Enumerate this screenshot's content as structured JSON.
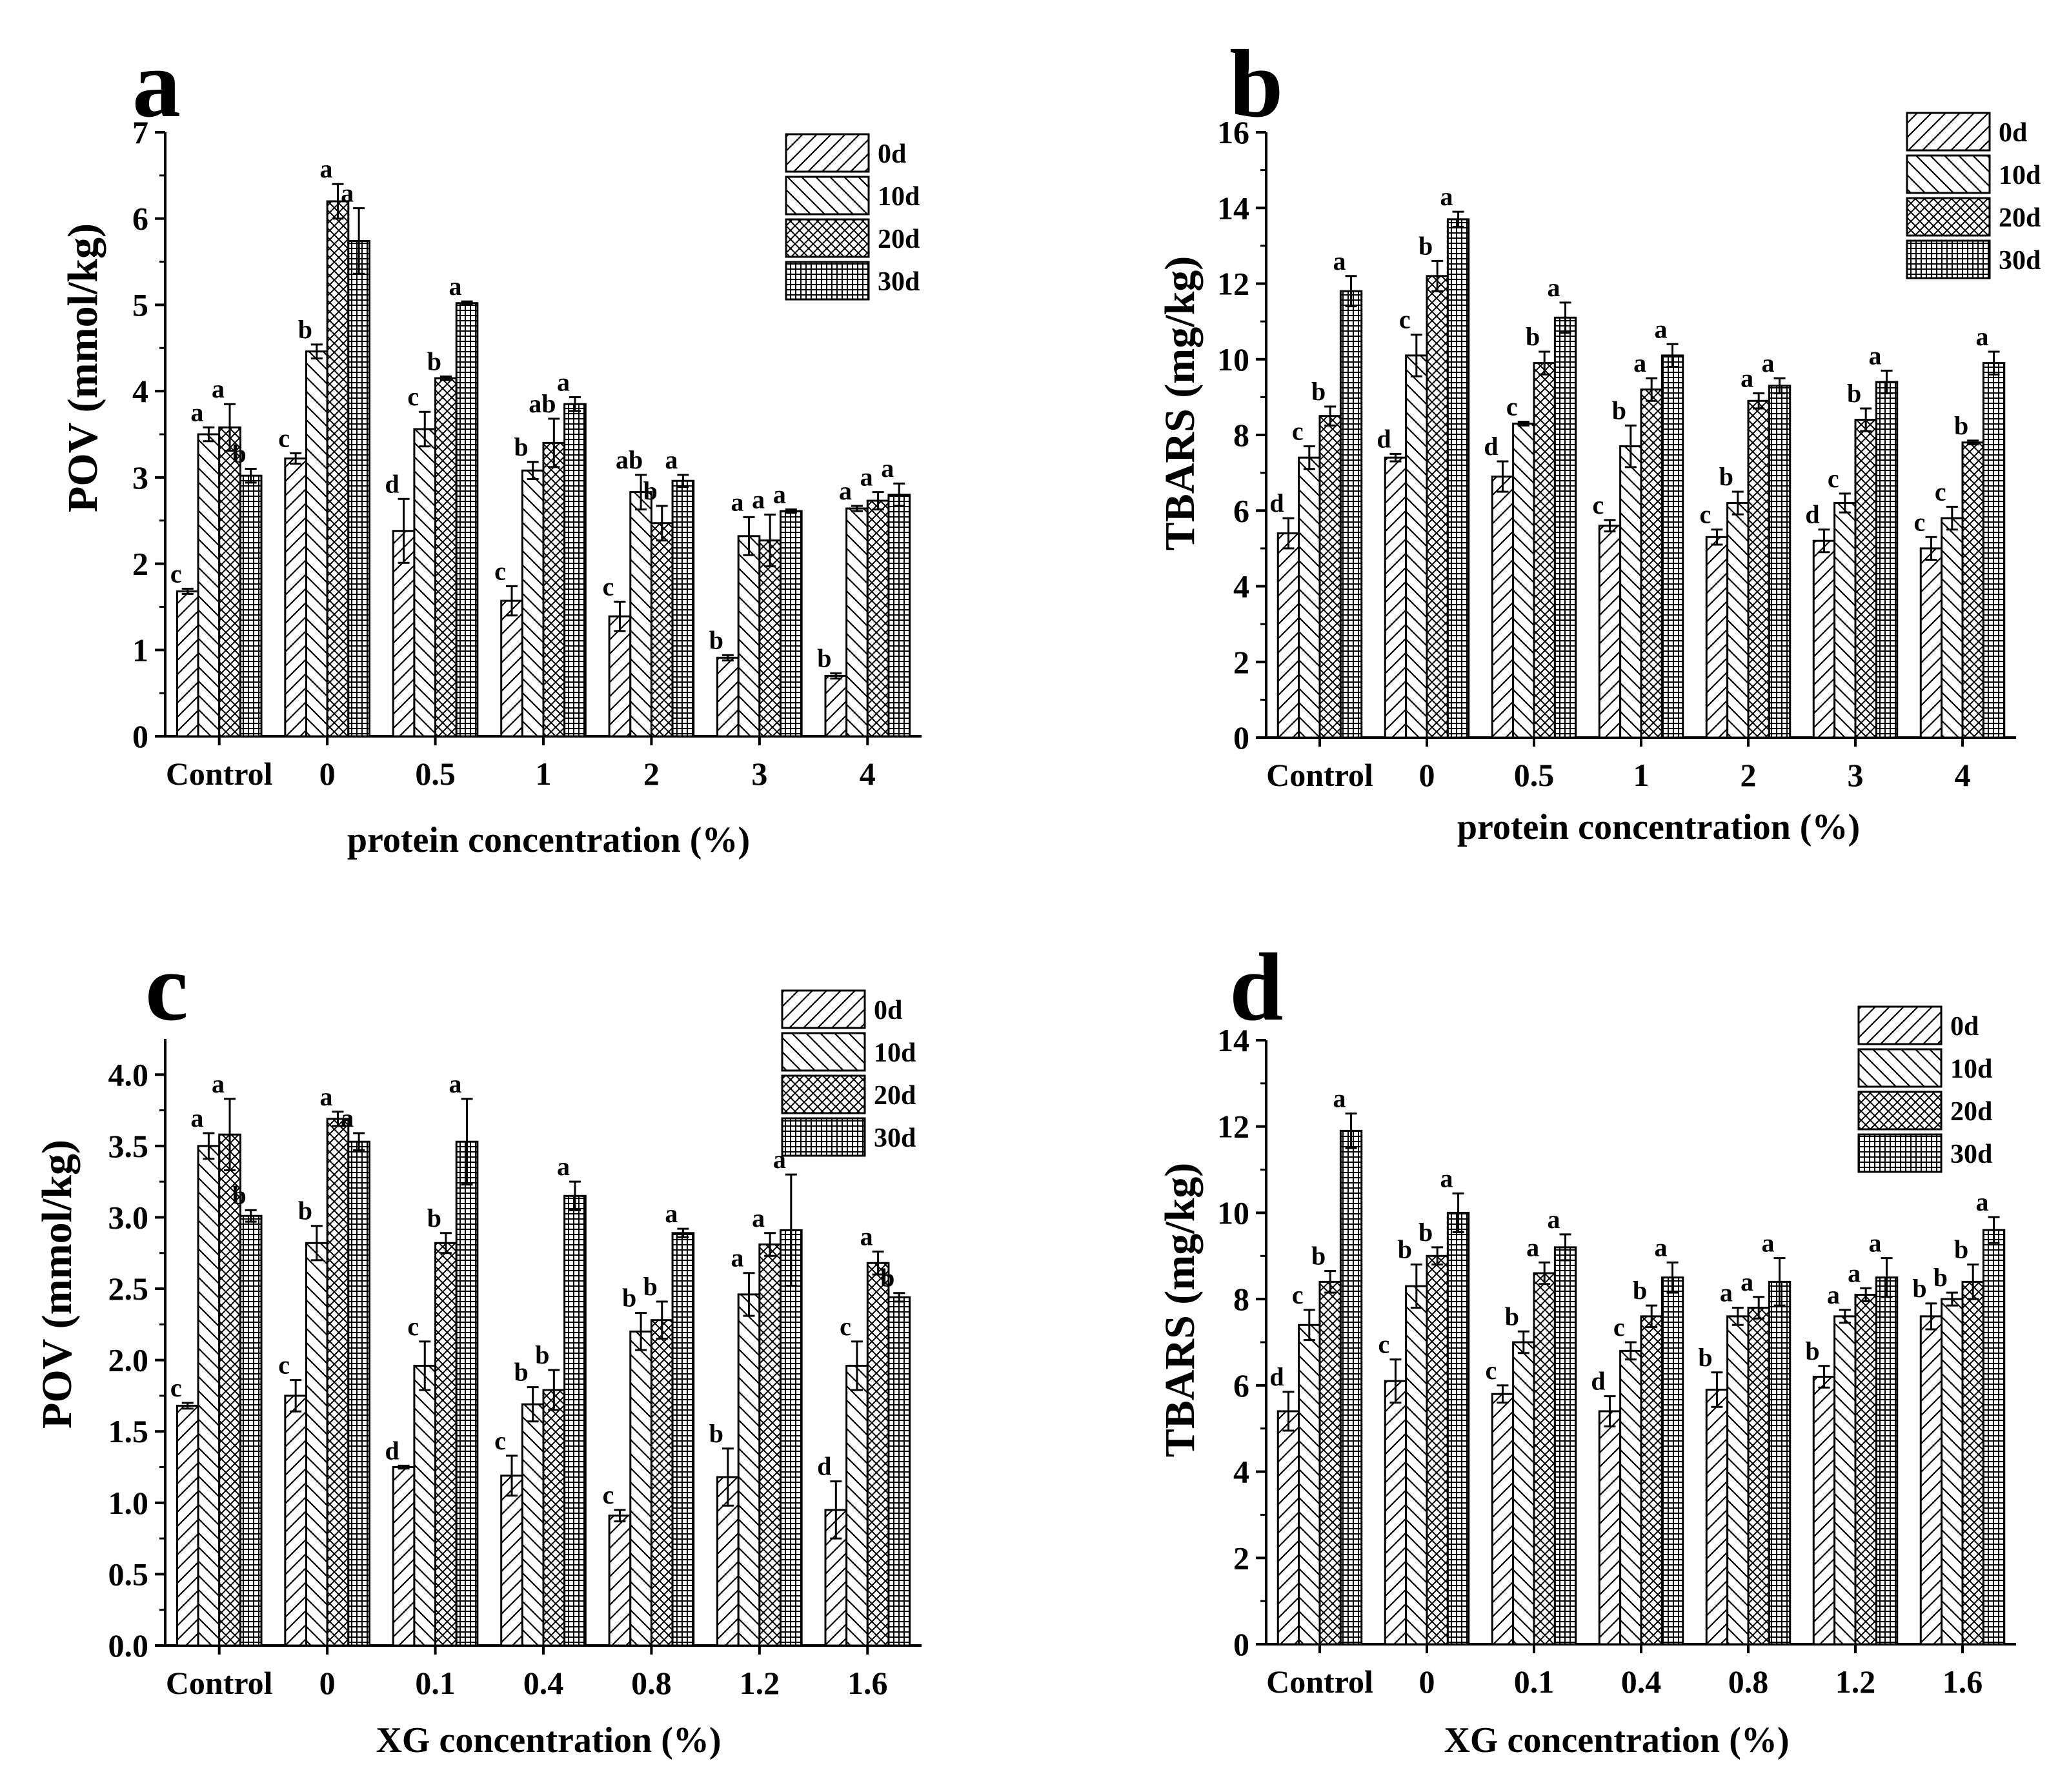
{
  "series_names": [
    "0d",
    "10d",
    "20d",
    "30d"
  ],
  "chart_data": [
    {
      "panel": "a",
      "type": "bar",
      "xlabel": "protein concentration (%)",
      "ylabel": "POV (mmol/kg)",
      "categories": [
        "Control",
        "0",
        "0.5",
        "1",
        "2",
        "3",
        "4"
      ],
      "ylim": [
        0,
        7
      ],
      "yticks": [
        "0",
        "1",
        "2",
        "3",
        "4",
        "5",
        "6",
        "7"
      ],
      "legend_position": "top-right",
      "series": [
        {
          "name": "0d",
          "values": [
            1.68,
            3.22,
            2.38,
            1.57,
            1.39,
            0.91,
            0.7
          ],
          "errors": [
            0.03,
            0.06,
            0.37,
            0.17,
            0.17,
            0.03,
            0.03
          ],
          "letters": [
            "c",
            "c",
            "d",
            "c",
            "c",
            "b",
            "b"
          ]
        },
        {
          "name": "10d",
          "values": [
            3.5,
            4.46,
            3.56,
            3.08,
            2.83,
            2.32,
            2.64
          ],
          "errors": [
            0.08,
            0.08,
            0.2,
            0.1,
            0.2,
            0.22,
            0.03
          ],
          "letters": [
            "a",
            "b",
            "c",
            "b",
            "ab",
            "a",
            "a"
          ]
        },
        {
          "name": "20d",
          "values": [
            3.58,
            6.2,
            4.15,
            3.4,
            2.47,
            2.27,
            2.73
          ],
          "errors": [
            0.27,
            0.2,
            0.02,
            0.28,
            0.2,
            0.3,
            0.1
          ],
          "letters": [
            "a",
            "a",
            "b",
            "ab",
            "b",
            "a",
            "a"
          ]
        },
        {
          "name": "30d",
          "values": [
            3.02,
            5.74,
            5.02,
            3.85,
            2.96,
            2.61,
            2.8
          ],
          "errors": [
            0.08,
            0.38,
            0.02,
            0.08,
            0.07,
            0.02,
            0.13
          ],
          "letters": [
            "b",
            "a",
            "a",
            "a",
            "a",
            "a",
            "a"
          ]
        }
      ]
    },
    {
      "panel": "b",
      "type": "bar",
      "xlabel": "protein concentration (%)",
      "ylabel": "TBARS (mg/kg)",
      "categories": [
        "Control",
        "0",
        "0.5",
        "1",
        "2",
        "3",
        "4"
      ],
      "ylim": [
        0,
        16
      ],
      "yticks": [
        "0",
        "2",
        "4",
        "6",
        "8",
        "10",
        "12",
        "14",
        "16"
      ],
      "legend_position": "top-right",
      "series": [
        {
          "name": "0d",
          "values": [
            5.4,
            7.4,
            6.9,
            5.6,
            5.3,
            5.2,
            5.0
          ],
          "errors": [
            0.4,
            0.1,
            0.4,
            0.15,
            0.2,
            0.3,
            0.3
          ],
          "letters": [
            "d",
            "d",
            "d",
            "c",
            "c",
            "d",
            "c"
          ]
        },
        {
          "name": "10d",
          "values": [
            7.4,
            10.1,
            8.3,
            7.7,
            6.2,
            6.2,
            5.8
          ],
          "errors": [
            0.3,
            0.55,
            0.05,
            0.55,
            0.3,
            0.25,
            0.3
          ],
          "letters": [
            "c",
            "c",
            "c",
            "b",
            "b",
            "c",
            "c"
          ]
        },
        {
          "name": "20d",
          "values": [
            8.5,
            12.2,
            9.9,
            9.2,
            8.9,
            8.4,
            7.8
          ],
          "errors": [
            0.25,
            0.4,
            0.3,
            0.3,
            0.2,
            0.3,
            0.05
          ],
          "letters": [
            "b",
            "b",
            "b",
            "a",
            "a",
            "b",
            "b"
          ]
        },
        {
          "name": "30d",
          "values": [
            11.8,
            13.7,
            11.1,
            10.1,
            9.3,
            9.4,
            9.9
          ],
          "errors": [
            0.4,
            0.2,
            0.4,
            0.3,
            0.2,
            0.3,
            0.3
          ],
          "letters": [
            "a",
            "a",
            "a",
            "a",
            "a",
            "a",
            "a"
          ]
        }
      ]
    },
    {
      "panel": "c",
      "type": "bar",
      "xlabel": "XG concentration (%)",
      "ylabel": "POV (mmol/kg)",
      "categories": [
        "Control",
        "0",
        "0.1",
        "0.4",
        "0.8",
        "1.2",
        "1.6"
      ],
      "ylim": [
        0,
        4.25
      ],
      "yticks": [
        "0.0",
        "0.5",
        "1.0",
        "1.5",
        "2.0",
        "2.5",
        "3.0",
        "3.5",
        "4.0"
      ],
      "legend_position": "top-right",
      "series": [
        {
          "name": "0d",
          "values": [
            1.68,
            1.75,
            1.25,
            1.19,
            0.91,
            1.18,
            0.95
          ],
          "errors": [
            0.02,
            0.11,
            0.01,
            0.14,
            0.04,
            0.2,
            0.2
          ],
          "letters": [
            "c",
            "c",
            "d",
            "c",
            "c",
            "b",
            "d"
          ]
        },
        {
          "name": "10d",
          "values": [
            3.5,
            2.82,
            1.96,
            1.69,
            2.2,
            2.46,
            1.96
          ],
          "errors": [
            0.09,
            0.12,
            0.17,
            0.12,
            0.13,
            0.15,
            0.17
          ],
          "letters": [
            "a",
            "b",
            "c",
            "b",
            "b",
            "a",
            "c"
          ]
        },
        {
          "name": "20d",
          "values": [
            3.58,
            3.69,
            2.82,
            1.79,
            2.28,
            2.81,
            2.68
          ],
          "errors": [
            0.25,
            0.05,
            0.07,
            0.14,
            0.13,
            0.08,
            0.08
          ],
          "letters": [
            "a",
            "a",
            "b",
            "b",
            "b",
            "a",
            "a"
          ]
        },
        {
          "name": "30d",
          "values": [
            3.01,
            3.53,
            3.53,
            3.15,
            2.89,
            2.91,
            2.44
          ],
          "errors": [
            0.04,
            0.06,
            0.3,
            0.1,
            0.03,
            0.39,
            0.03
          ],
          "letters": [
            "b",
            "a",
            "a",
            "a",
            "a",
            "a",
            "b"
          ]
        }
      ]
    },
    {
      "panel": "d",
      "type": "bar",
      "xlabel": "XG concentration (%)",
      "ylabel": "TBARS (mg/kg)",
      "categories": [
        "Control",
        "0",
        "0.1",
        "0.4",
        "0.8",
        "1.2",
        "1.6"
      ],
      "ylim": [
        0,
        14
      ],
      "yticks": [
        "0",
        "2",
        "4",
        "6",
        "8",
        "10",
        "12",
        "14"
      ],
      "legend_position": "top-right",
      "series": [
        {
          "name": "0d",
          "values": [
            5.4,
            6.1,
            5.8,
            5.4,
            5.9,
            6.2,
            7.6
          ],
          "errors": [
            0.45,
            0.5,
            0.2,
            0.35,
            0.4,
            0.25,
            0.3
          ],
          "letters": [
            "d",
            "c",
            "c",
            "d",
            "b",
            "b",
            "b"
          ]
        },
        {
          "name": "10d",
          "values": [
            7.4,
            8.3,
            7.0,
            6.8,
            7.6,
            7.6,
            8.0
          ],
          "errors": [
            0.35,
            0.5,
            0.25,
            0.2,
            0.2,
            0.15,
            0.15
          ],
          "letters": [
            "c",
            "b",
            "b",
            "c",
            "a",
            "a",
            "b"
          ]
        },
        {
          "name": "20d",
          "values": [
            8.4,
            9.0,
            8.6,
            7.6,
            7.8,
            8.1,
            8.4
          ],
          "errors": [
            0.25,
            0.2,
            0.25,
            0.25,
            0.25,
            0.15,
            0.4
          ],
          "letters": [
            "b",
            "b",
            "a",
            "b",
            "a",
            "a",
            "b"
          ]
        },
        {
          "name": "30d",
          "values": [
            11.9,
            10.0,
            9.2,
            8.5,
            8.4,
            8.5,
            9.6
          ],
          "errors": [
            0.4,
            0.45,
            0.3,
            0.35,
            0.55,
            0.45,
            0.3
          ],
          "letters": [
            "a",
            "a",
            "a",
            "a",
            "a",
            "a",
            "a"
          ]
        }
      ]
    }
  ]
}
